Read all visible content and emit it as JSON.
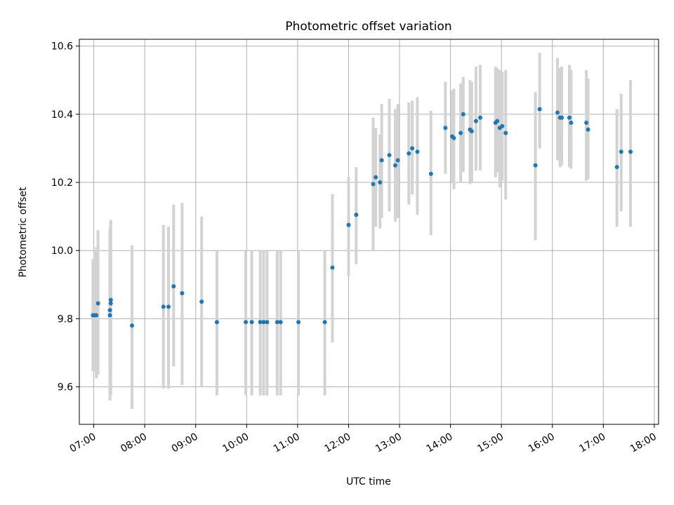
{
  "chart_data": {
    "type": "scatter",
    "title": "Photometric offset variation",
    "xlabel": "UTC time",
    "ylabel": "Photometric offset",
    "xlim": [
      "06:43",
      "18:05"
    ],
    "ylim": [
      9.49,
      10.62
    ],
    "x_ticks": [
      "07:00",
      "08:00",
      "09:00",
      "10:00",
      "11:00",
      "12:00",
      "13:00",
      "14:00",
      "15:00",
      "16:00",
      "17:00",
      "18:00"
    ],
    "y_ticks": [
      "9.6",
      "9.8",
      "10.0",
      "10.2",
      "10.4",
      "10.6"
    ],
    "grid": true,
    "point_color": "#1f77b4",
    "errorbar_color": "#d3d3d3",
    "series": [
      {
        "x": [
          "06:59",
          "07:01",
          "07:03",
          "07:05",
          "07:19",
          "07:19",
          "07:20",
          "07:20",
          "07:45",
          "08:22",
          "08:28",
          "08:34",
          "08:44",
          "09:07",
          "09:25",
          "09:59",
          "10:06",
          "10:16",
          "10:20",
          "10:24",
          "10:36",
          "10:40",
          "11:01",
          "11:32",
          "11:41",
          "12:00",
          "12:09",
          "12:29",
          "12:32",
          "12:37",
          "12:39",
          "12:48",
          "12:55",
          "12:58",
          "13:11",
          "13:15",
          "13:21",
          "13:37",
          "13:54",
          "14:02",
          "14:04",
          "14:12",
          "14:15",
          "14:23",
          "14:25",
          "14:30",
          "14:35",
          "14:53",
          "14:55",
          "14:58",
          "15:01",
          "15:05",
          "15:40",
          "15:45",
          "16:06",
          "16:09",
          "16:11",
          "16:20",
          "16:22",
          "16:40",
          "16:42",
          "17:16",
          "17:21",
          "17:32"
        ],
        "y": [
          9.81,
          9.81,
          9.81,
          9.845,
          9.81,
          9.825,
          9.845,
          9.855,
          9.78,
          9.835,
          9.835,
          9.895,
          9.875,
          9.85,
          9.79,
          9.79,
          9.79,
          9.79,
          9.79,
          9.79,
          9.79,
          9.79,
          9.79,
          9.79,
          9.95,
          10.075,
          10.105,
          10.195,
          10.215,
          10.2,
          10.265,
          10.28,
          10.25,
          10.265,
          10.285,
          10.3,
          10.29,
          10.225,
          10.36,
          10.335,
          10.33,
          10.345,
          10.4,
          10.355,
          10.35,
          10.38,
          10.39,
          10.375,
          10.38,
          10.36,
          10.365,
          10.345,
          10.25,
          10.415,
          10.405,
          10.39,
          10.39,
          10.39,
          10.375,
          10.375,
          10.355,
          10.245,
          10.29,
          10.29
        ],
        "err_low": [
          9.645,
          9.645,
          9.625,
          9.635,
          9.645,
          9.56,
          9.575,
          9.645,
          9.535,
          9.595,
          9.595,
          9.66,
          9.605,
          9.6,
          9.575,
          9.575,
          9.575,
          9.575,
          9.575,
          9.575,
          9.575,
          9.575,
          9.575,
          9.575,
          9.73,
          9.925,
          9.96,
          10.0,
          10.07,
          10.065,
          10.095,
          10.115,
          10.085,
          10.095,
          10.135,
          10.165,
          10.105,
          10.045,
          10.225,
          10.2,
          10.18,
          10.2,
          10.23,
          10.195,
          10.2,
          10.235,
          10.235,
          10.215,
          10.23,
          10.185,
          10.205,
          10.15,
          10.03,
          10.3,
          10.265,
          10.245,
          10.25,
          10.245,
          10.24,
          10.205,
          10.21,
          10.07,
          10.115,
          10.07
        ],
        "err_high": [
          9.975,
          10.0,
          10.01,
          10.06,
          10.0,
          10.065,
          10.085,
          10.09,
          10.015,
          10.075,
          10.07,
          10.135,
          10.14,
          10.1,
          10.0,
          10.0,
          10.0,
          10.0,
          10.0,
          10.0,
          10.0,
          10.0,
          10.0,
          10.0,
          10.165,
          10.215,
          10.245,
          10.39,
          10.36,
          10.34,
          10.43,
          10.445,
          10.415,
          10.43,
          10.435,
          10.44,
          10.45,
          10.41,
          10.495,
          10.47,
          10.475,
          10.49,
          10.51,
          10.5,
          10.495,
          10.54,
          10.545,
          10.54,
          10.535,
          10.53,
          10.525,
          10.53,
          10.465,
          10.58,
          10.565,
          10.535,
          10.54,
          10.545,
          10.53,
          10.53,
          10.505,
          10.415,
          10.46,
          10.5
        ]
      }
    ]
  }
}
